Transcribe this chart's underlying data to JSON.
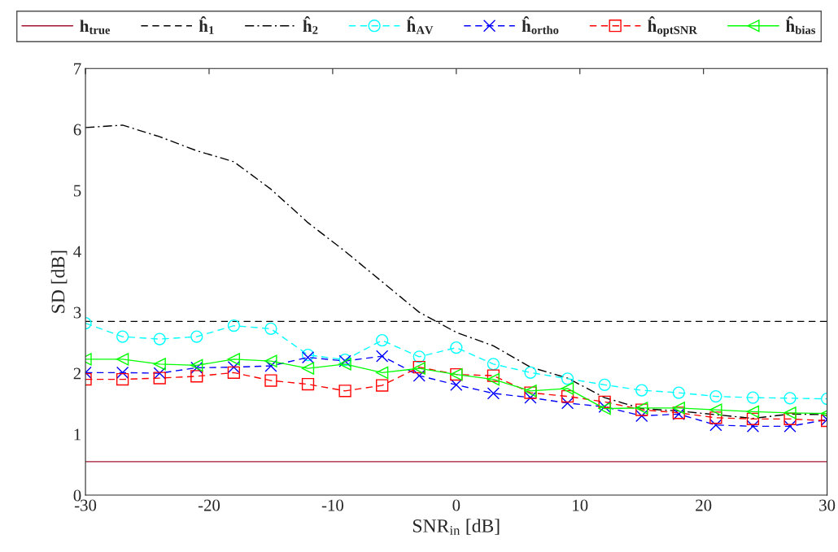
{
  "chart_data": {
    "type": "line",
    "xlabel": "SNR$_{in}$ [dB]",
    "ylabel": "SD [dB]",
    "x": [
      -30,
      -27,
      -24,
      -21,
      -18,
      -15,
      -12,
      -9,
      -6,
      -3,
      0,
      3,
      6,
      9,
      12,
      15,
      18,
      21,
      24,
      27,
      30
    ],
    "xlim": [
      -30,
      30
    ],
    "xticks": [
      -30,
      -20,
      -10,
      0,
      10,
      20,
      30
    ],
    "ylim": [
      0,
      7
    ],
    "yticks": [
      0,
      1,
      2,
      3,
      4,
      5,
      6,
      7
    ],
    "grid": false,
    "legend": "top",
    "series": [
      {
        "name": "h$_{true}$",
        "color": "#a2142f",
        "line_style": "solid",
        "marker": "none",
        "values": [
          0.55,
          0.55,
          0.55,
          0.55,
          0.55,
          0.55,
          0.55,
          0.55,
          0.55,
          0.55,
          0.55,
          0.55,
          0.55,
          0.55,
          0.55,
          0.55,
          0.55,
          0.55,
          0.55,
          0.55,
          0.55
        ]
      },
      {
        "name": "ĥ$_{1}$",
        "color": "#000000",
        "line_style": "dashed",
        "marker": "none",
        "values": [
          2.85,
          2.85,
          2.85,
          2.85,
          2.85,
          2.85,
          2.85,
          2.85,
          2.85,
          2.85,
          2.85,
          2.85,
          2.85,
          2.85,
          2.85,
          2.85,
          2.85,
          2.85,
          2.85,
          2.85,
          2.85
        ]
      },
      {
        "name": "ĥ$_{2}$",
        "color": "#000000",
        "line_style": "dashdot",
        "marker": "none",
        "values": [
          6.03,
          6.07,
          5.88,
          5.65,
          5.47,
          5.02,
          4.47,
          4.0,
          3.5,
          3.0,
          2.67,
          2.45,
          2.1,
          1.92,
          1.6,
          1.42,
          1.38,
          1.32,
          1.26,
          1.33,
          1.32
        ]
      },
      {
        "name": "ĥ$_{AV}$",
        "color": "#00ffff",
        "line_style": "dashed",
        "marker": "circle",
        "values": [
          2.82,
          2.6,
          2.56,
          2.6,
          2.78,
          2.73,
          2.3,
          2.22,
          2.54,
          2.27,
          2.42,
          2.15,
          2.01,
          1.91,
          1.81,
          1.72,
          1.68,
          1.62,
          1.6,
          1.59,
          1.58
        ]
      },
      {
        "name": "ĥ$_{ortho}$",
        "color": "#0000ff",
        "line_style": "dashed",
        "marker": "cross",
        "values": [
          2.01,
          2.01,
          2.0,
          2.09,
          2.1,
          2.12,
          2.26,
          2.2,
          2.28,
          1.96,
          1.81,
          1.67,
          1.6,
          1.51,
          1.45,
          1.3,
          1.33,
          1.15,
          1.13,
          1.13,
          1.24
        ]
      },
      {
        "name": "ĥ$_{optSNR}$",
        "color": "#ff0000",
        "line_style": "dashed",
        "marker": "square",
        "values": [
          1.9,
          1.9,
          1.92,
          1.95,
          2.01,
          1.88,
          1.82,
          1.71,
          1.8,
          2.1,
          1.98,
          1.96,
          1.68,
          1.62,
          1.53,
          1.4,
          1.35,
          1.27,
          1.25,
          1.25,
          1.22
        ]
      },
      {
        "name": "ĥ$_{bias}$",
        "color": "#00ff00",
        "line_style": "solid",
        "marker": "triangle",
        "values": [
          2.23,
          2.23,
          2.15,
          2.13,
          2.23,
          2.2,
          2.08,
          2.15,
          2.01,
          2.08,
          1.98,
          1.9,
          1.71,
          1.75,
          1.42,
          1.43,
          1.43,
          1.4,
          1.37,
          1.35,
          1.34
        ]
      }
    ]
  }
}
